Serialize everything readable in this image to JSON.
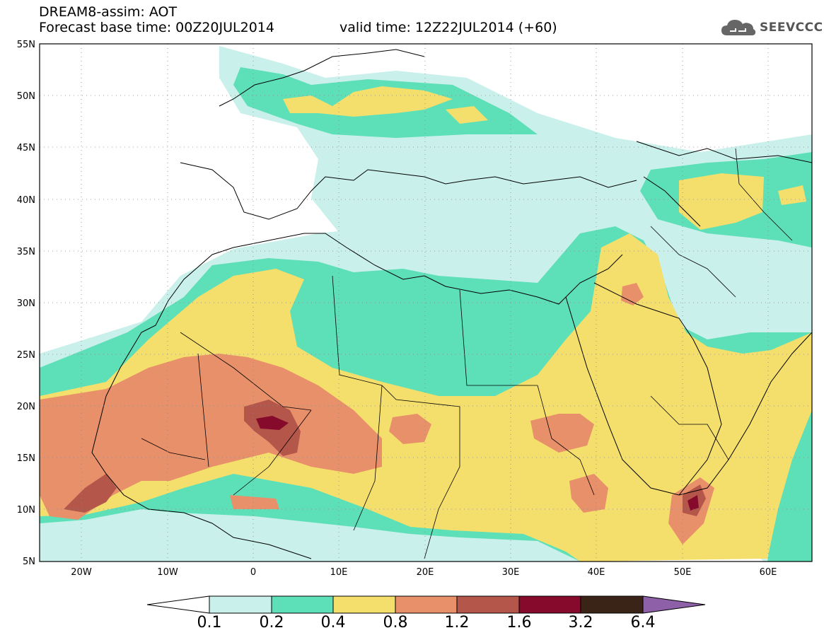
{
  "header": {
    "title": "DREAM8-assim: AOT",
    "base_time": "Forecast base time: 00Z20JUL2014",
    "valid_time": "valid time: 12Z22JUL2014 (+60)"
  },
  "logo": {
    "text": "SEEVCCC",
    "icon": "cloud-icon"
  },
  "map": {
    "lat_labels": [
      "55N",
      "50N",
      "45N",
      "40N",
      "35N",
      "30N",
      "25N",
      "20N",
      "15N",
      "10N",
      "5N"
    ],
    "lon_labels": [
      "20W",
      "10W",
      "0",
      "10E",
      "20E",
      "30E",
      "40E",
      "50E",
      "60E"
    ],
    "lon_range": [
      -25,
      65
    ],
    "lat_range": [
      5,
      55
    ],
    "grid": "dotted"
  },
  "colorbar": {
    "labels": [
      "0.1",
      "0.2",
      "0.4",
      "0.8",
      "1.2",
      "1.6",
      "3.2",
      "6.4"
    ],
    "colors": [
      "#ffffff",
      "#c9f0ea",
      "#5ddfb8",
      "#f4df6c",
      "#e8906a",
      "#b5564a",
      "#850a2c",
      "#3a2418",
      "#8e60a8"
    ]
  }
}
